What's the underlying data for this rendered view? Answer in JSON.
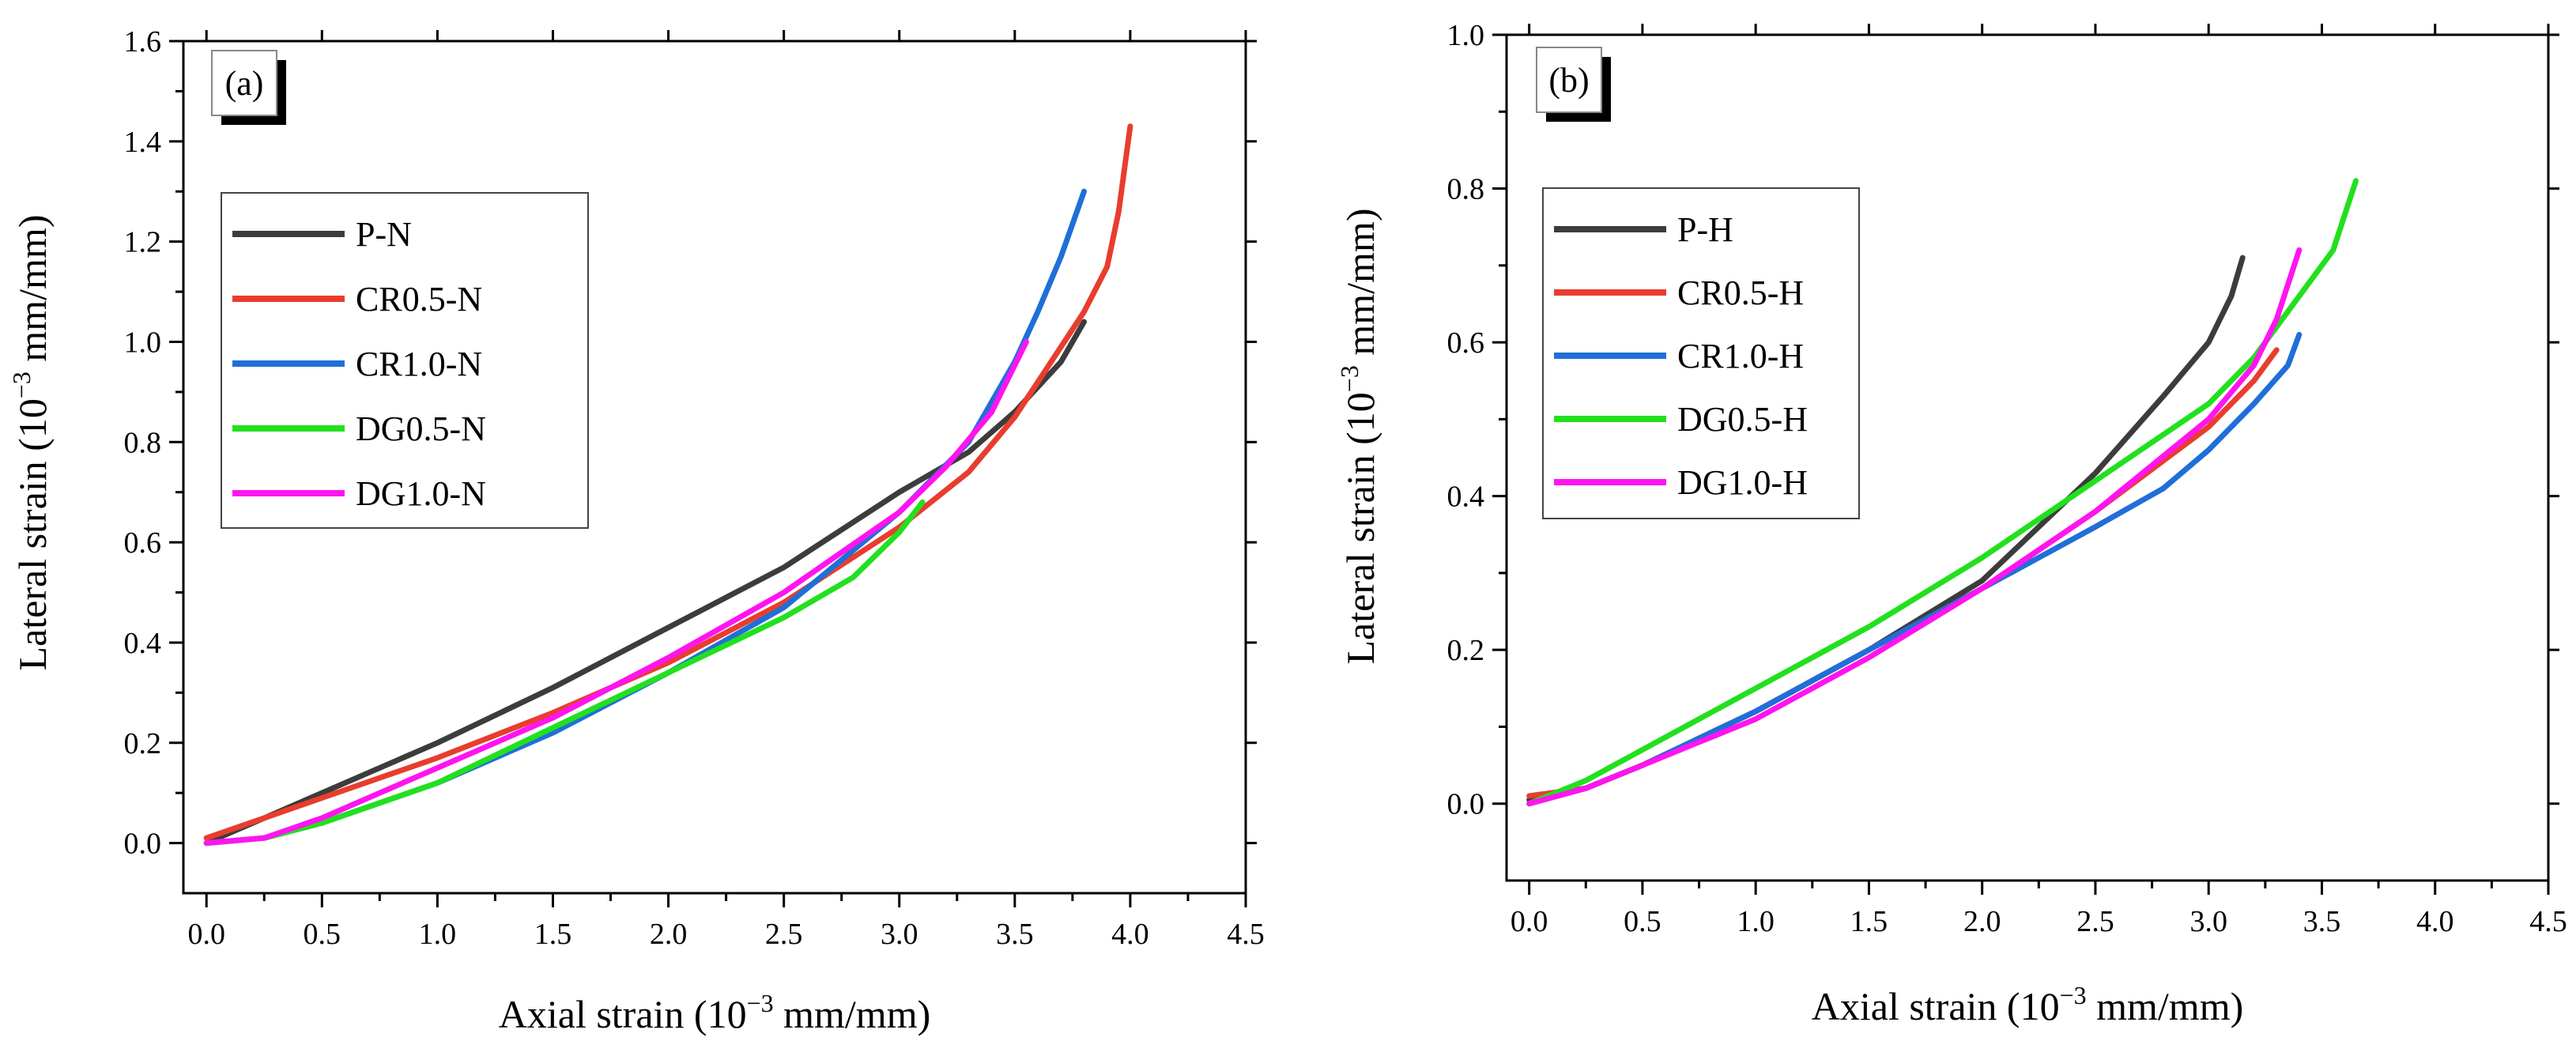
{
  "chart_data": [
    {
      "type": "line",
      "panel_label": "(a)",
      "xlabel": "Axial strain (10",
      "xlabel_exp": "−3",
      "xlabel_unit": " mm/mm)",
      "ylabel": "Lateral strain (10",
      "ylabel_exp": "−3",
      "ylabel_unit": " mm/mm)",
      "xlim": [
        -0.1,
        4.5
      ],
      "ylim": [
        -0.1,
        1.6
      ],
      "xticks": [
        "0.0",
        "0.5",
        "1.0",
        "1.5",
        "2.0",
        "2.5",
        "3.0",
        "3.5",
        "4.0",
        "4.5"
      ],
      "yticks": [
        "0.0",
        "0.2",
        "0.4",
        "0.6",
        "0.8",
        "1.0",
        "1.2",
        "1.4",
        "1.6"
      ],
      "legend_position": "left",
      "series": [
        {
          "name": "P-N",
          "color": "#3c3c3c",
          "x": [
            0.0,
            0.25,
            0.5,
            1.0,
            1.5,
            2.0,
            2.5,
            3.0,
            3.3,
            3.5,
            3.7,
            3.8
          ],
          "y": [
            0.0,
            0.05,
            0.1,
            0.2,
            0.31,
            0.43,
            0.55,
            0.7,
            0.78,
            0.86,
            0.96,
            1.04
          ]
        },
        {
          "name": "CR0.5-N",
          "color": "#e83d2e",
          "x": [
            0.0,
            0.25,
            0.5,
            1.0,
            1.5,
            2.0,
            2.5,
            3.0,
            3.3,
            3.5,
            3.7,
            3.8,
            3.9,
            3.95,
            4.0
          ],
          "y": [
            0.01,
            0.05,
            0.09,
            0.17,
            0.26,
            0.36,
            0.48,
            0.63,
            0.74,
            0.85,
            0.99,
            1.06,
            1.15,
            1.26,
            1.43
          ]
        },
        {
          "name": "CR1.0-N",
          "color": "#1f6fd8",
          "x": [
            0.0,
            0.25,
            0.5,
            1.0,
            1.5,
            2.0,
            2.5,
            3.0,
            3.3,
            3.5,
            3.6,
            3.7,
            3.8
          ],
          "y": [
            0.0,
            0.01,
            0.04,
            0.12,
            0.22,
            0.34,
            0.47,
            0.66,
            0.8,
            0.96,
            1.06,
            1.17,
            1.3
          ]
        },
        {
          "name": "DG0.5-N",
          "color": "#22e01e",
          "x": [
            0.0,
            0.25,
            0.5,
            1.0,
            1.5,
            2.0,
            2.5,
            2.8,
            3.0,
            3.1
          ],
          "y": [
            0.0,
            0.01,
            0.04,
            0.12,
            0.23,
            0.34,
            0.45,
            0.53,
            0.62,
            0.68
          ]
        },
        {
          "name": "DG1.0-N",
          "color": "#ff14f0",
          "x": [
            0.0,
            0.25,
            0.5,
            1.0,
            1.5,
            2.0,
            2.5,
            3.0,
            3.2,
            3.4,
            3.55
          ],
          "y": [
            0.0,
            0.01,
            0.05,
            0.15,
            0.25,
            0.37,
            0.5,
            0.66,
            0.75,
            0.86,
            1.0
          ]
        }
      ]
    },
    {
      "type": "line",
      "panel_label": "(b)",
      "xlabel": "Axial strain (10",
      "xlabel_exp": "−3",
      "xlabel_unit": " mm/mm)",
      "ylabel": "Lateral strain (10",
      "ylabel_exp": "−3",
      "ylabel_unit": " mm/mm)",
      "xlim": [
        -0.1,
        4.5
      ],
      "ylim": [
        -0.1,
        1.0
      ],
      "xticks": [
        "0.0",
        "0.5",
        "1.0",
        "1.5",
        "2.0",
        "2.5",
        "3.0",
        "3.5",
        "4.0",
        "4.5"
      ],
      "yticks": [
        "0.0",
        "0.2",
        "0.4",
        "0.6",
        "0.8",
        "1.0"
      ],
      "legend_position": "left",
      "series": [
        {
          "name": "P-H",
          "color": "#3c3c3c",
          "x": [
            0.0,
            0.25,
            0.5,
            1.0,
            1.5,
            2.0,
            2.5,
            2.8,
            3.0,
            3.1,
            3.15
          ],
          "y": [
            0.005,
            0.02,
            0.05,
            0.12,
            0.2,
            0.29,
            0.43,
            0.53,
            0.6,
            0.66,
            0.71
          ]
        },
        {
          "name": "CR0.5-H",
          "color": "#e83d2e",
          "x": [
            0.0,
            0.25,
            0.5,
            1.0,
            1.5,
            2.0,
            2.5,
            3.0,
            3.2,
            3.3
          ],
          "y": [
            0.01,
            0.02,
            0.05,
            0.12,
            0.2,
            0.28,
            0.38,
            0.49,
            0.55,
            0.59
          ]
        },
        {
          "name": "CR1.0-H",
          "color": "#1f6fd8",
          "x": [
            0.0,
            0.25,
            0.5,
            1.0,
            1.5,
            2.0,
            2.5,
            2.8,
            3.0,
            3.2,
            3.35,
            3.4
          ],
          "y": [
            0.0,
            0.02,
            0.05,
            0.12,
            0.2,
            0.28,
            0.36,
            0.41,
            0.46,
            0.52,
            0.57,
            0.61
          ]
        },
        {
          "name": "DG0.5-H",
          "color": "#22e01e",
          "x": [
            0.0,
            0.25,
            0.5,
            1.0,
            1.5,
            2.0,
            2.5,
            3.0,
            3.2,
            3.4,
            3.55,
            3.65
          ],
          "y": [
            0.0,
            0.03,
            0.07,
            0.15,
            0.23,
            0.32,
            0.42,
            0.52,
            0.58,
            0.66,
            0.72,
            0.81
          ]
        },
        {
          "name": "DG1.0-H",
          "color": "#ff14f0",
          "x": [
            0.0,
            0.25,
            0.5,
            1.0,
            1.5,
            2.0,
            2.5,
            3.0,
            3.2,
            3.3,
            3.4
          ],
          "y": [
            0.0,
            0.02,
            0.05,
            0.11,
            0.19,
            0.28,
            0.38,
            0.5,
            0.57,
            0.63,
            0.72
          ]
        }
      ]
    }
  ]
}
